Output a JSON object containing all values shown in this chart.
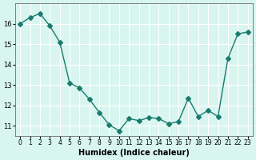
{
  "x": [
    0,
    1,
    2,
    3,
    4,
    5,
    6,
    7,
    8,
    9,
    10,
    11,
    12,
    13,
    14,
    15,
    16,
    17,
    18,
    19,
    20,
    21,
    22,
    23
  ],
  "y": [
    16.0,
    16.3,
    16.5,
    15.9,
    15.1,
    13.1,
    12.85,
    12.3,
    11.65,
    11.05,
    10.75,
    11.35,
    11.25,
    11.4,
    11.35,
    11.1,
    11.2,
    12.35,
    11.45,
    11.75,
    11.45,
    14.3,
    15.5,
    15.6
  ],
  "xlabel": "Humidex (Indice chaleur)",
  "ylabel": "",
  "title": "",
  "line_color": "#1a7a6e",
  "marker": "D",
  "marker_size": 3,
  "bg_color": "#d8f5f0",
  "grid_color": "#ffffff",
  "ylim": [
    10.5,
    17.0
  ],
  "xlim": [
    -0.5,
    23.5
  ],
  "yticks": [
    11,
    12,
    13,
    14,
    15,
    16
  ],
  "xticks": [
    0,
    1,
    2,
    3,
    4,
    5,
    6,
    7,
    8,
    9,
    10,
    11,
    12,
    13,
    14,
    15,
    16,
    17,
    18,
    19,
    20,
    21,
    22,
    23
  ],
  "xtick_labels": [
    "0",
    "1",
    "2",
    "3",
    "4",
    "5",
    "6",
    "7",
    "8",
    "9",
    "10",
    "11",
    "12",
    "13",
    "14",
    "15",
    "16",
    "17",
    "18",
    "19",
    "20",
    "21",
    "22",
    "23"
  ]
}
